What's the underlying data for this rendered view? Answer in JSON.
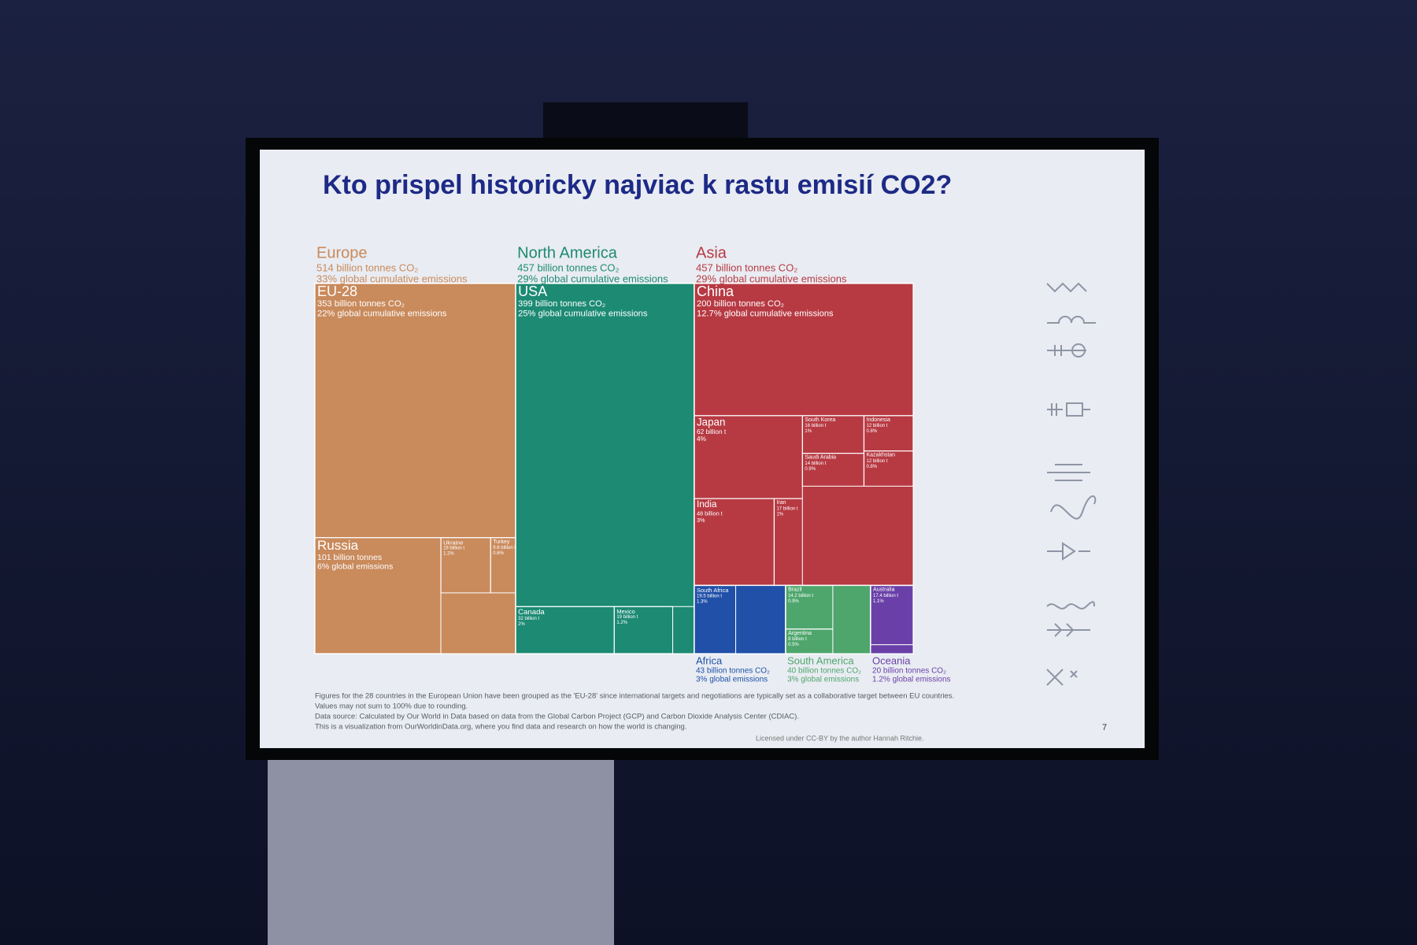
{
  "chart_data": {
    "type": "treemap",
    "title": "Kto prispel historicky najviac k rastu emisií CO2?",
    "groups": [
      {
        "name": "Europe",
        "value": 514,
        "value_label": "514 billion tonnes CO₂",
        "share_label": "33% global cumulative emissions",
        "color": "#c98a5c",
        "children": [
          {
            "name": "EU-28",
            "value": 353,
            "value_label": "353 billion tonnes CO₂",
            "share_label": "22% global cumulative emissions"
          },
          {
            "name": "Russia",
            "value": 101,
            "value_label": "101 billion tonnes",
            "share_label": "6% global emissions"
          },
          {
            "name": "Ukraine",
            "value": 19,
            "value_label": "19 billion t",
            "share_label": "1.2%"
          },
          {
            "name": "Turkey",
            "value": 9.6,
            "value_label": "9.6 billion t",
            "share_label": "0.6%"
          }
        ]
      },
      {
        "name": "North America",
        "value": 457,
        "value_label": "457 billion tonnes CO₂",
        "share_label": "29% global cumulative emissions",
        "color": "#1d8a74",
        "children": [
          {
            "name": "USA",
            "value": 399,
            "value_label": "399 billion tonnes CO₂",
            "share_label": "25% global cumulative emissions"
          },
          {
            "name": "Canada",
            "value": 32,
            "value_label": "32 billion t",
            "share_label": "2%"
          },
          {
            "name": "Mexico",
            "value": 19,
            "value_label": "19 billion t",
            "share_label": "1.2%"
          }
        ]
      },
      {
        "name": "Asia",
        "value": 457,
        "value_label": "457 billion tonnes CO₂",
        "share_label": "29% global cumulative emissions",
        "color": "#b73a43",
        "children": [
          {
            "name": "China",
            "value": 200,
            "value_label": "200 billion tonnes CO₂",
            "share_label": "12.7% global cumulative emissions"
          },
          {
            "name": "Japan",
            "value": 62,
            "value_label": "62 billion t",
            "share_label": "4%"
          },
          {
            "name": "India",
            "value": 48,
            "value_label": "48 billion t",
            "share_label": "3%"
          },
          {
            "name": "Iran",
            "value": 17,
            "value_label": "17 billion t",
            "share_label": "1%"
          },
          {
            "name": "South Korea",
            "value": 16,
            "value_label": "16 billion t",
            "share_label": "1%"
          },
          {
            "name": "Saudi Arabia",
            "value": 14,
            "value_label": "14 billion t",
            "share_label": "0.9%"
          },
          {
            "name": "Indonesia",
            "value": 12,
            "value_label": "12 billion t",
            "share_label": "0.8%"
          },
          {
            "name": "Kazakhstan",
            "value": 12,
            "value_label": "12 billion t",
            "share_label": "0.8%"
          }
        ]
      },
      {
        "name": "Africa",
        "value": 43,
        "value_label": "43 billion tonnes CO₂",
        "share_label": "3% global emissions",
        "color": "#2050a8",
        "children": [
          {
            "name": "South Africa",
            "value": 19.5,
            "value_label": "19.5 billion t",
            "share_label": "1.3%"
          }
        ]
      },
      {
        "name": "South America",
        "value": 40,
        "value_label": "40 billion tonnes CO₂",
        "share_label": "3% global emissions",
        "color": "#4ea66c",
        "children": [
          {
            "name": "Brazil",
            "value": 14.2,
            "value_label": "14.2 billion t",
            "share_label": "0.9%"
          },
          {
            "name": "Argentina",
            "value": 8,
            "value_label": "8 billion t",
            "share_label": "0.5%"
          }
        ]
      },
      {
        "name": "Oceania",
        "value": 20,
        "value_label": "20 billion tonnes CO₂",
        "share_label": "1.2% global emissions",
        "color": "#6a40a8",
        "children": [
          {
            "name": "Australia",
            "value": 17.4,
            "value_label": "17.4 billion t",
            "share_label": "1.1%"
          }
        ]
      }
    ],
    "notes": [
      "Figures for the 28 countries in the European Union have been grouped as the 'EU-28' since international targets and negotiations are typically set as a collaborative target between EU countries.",
      "Values may not sum to 100% due to rounding.",
      "Data source: Calculated by Our World in Data based on data from the Global Carbon Project (GCP) and Carbon Dioxide Analysis Center (CDIAC).",
      "This is a visualization from OurWorldinData.org, where you find data and research on how the world is changing."
    ],
    "credit": "Licensed under CC-BY by the author Hannah Ritchie.",
    "page_number": 7
  }
}
